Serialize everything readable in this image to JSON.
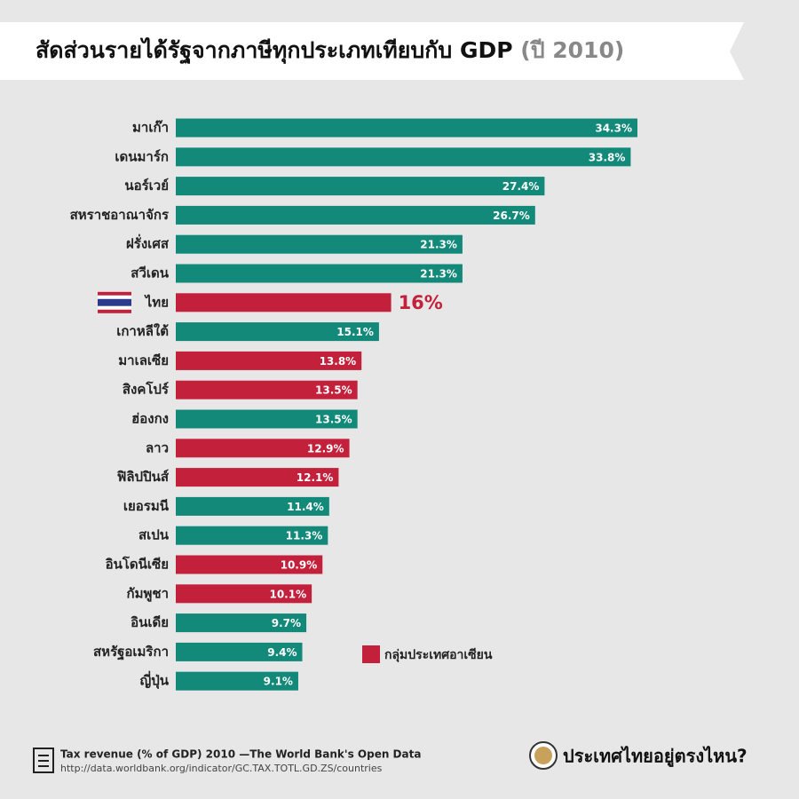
{
  "chart_data": {
    "type": "bar",
    "title": "สัดส่วนรายได้รัฐจากภาษีทุกประเภทเทียบกับ GDP",
    "subtitle": "(ปี 2010)",
    "categories": [
      "มาเก๊า",
      "เดนมาร์ก",
      "นอร์เวย์",
      "สหราชอาณาจักร",
      "ฝรั่งเศส",
      "สวีเดน",
      "ไทย",
      "เกาหลีใต้",
      "มาเลเซีย",
      "สิงคโปร์",
      "ฮ่องกง",
      "ลาว",
      "ฟิลิปปินส์",
      "เยอรมนี",
      "สเปน",
      "อินโดนีเซีย",
      "กัมพูชา",
      "อินเดีย",
      "สหรัฐอเมริกา",
      "ญี่ปุ่น"
    ],
    "values": [
      34.3,
      33.8,
      27.4,
      26.7,
      21.3,
      21.3,
      16,
      15.1,
      13.8,
      13.5,
      13.5,
      12.9,
      12.1,
      11.4,
      11.3,
      10.9,
      10.1,
      9.7,
      9.4,
      9.1
    ],
    "value_labels": [
      "34.3%",
      "33.8%",
      "27.4%",
      "26.7%",
      "21.3%",
      "21.3%",
      "16%",
      "15.1%",
      "13.8%",
      "13.5%",
      "13.5%",
      "12.9%",
      "12.1%",
      "11.4%",
      "11.3%",
      "10.9%",
      "10.1%",
      "9.7%",
      "9.4%",
      "9.1%"
    ],
    "colors": [
      "#13897a",
      "#13897a",
      "#13897a",
      "#13897a",
      "#13897a",
      "#13897a",
      "#c3213b",
      "#13897a",
      "#c3213b",
      "#c3213b",
      "#13897a",
      "#c3213b",
      "#c3213b",
      "#13897a",
      "#13897a",
      "#c3213b",
      "#c3213b",
      "#13897a",
      "#13897a",
      "#13897a"
    ],
    "highlight": 6,
    "legend": {
      "label": "กลุ่มประเทศอาเซียน",
      "color": "#c3213b"
    },
    "source": "Tax revenue (% of GDP) 2010 —The World Bank's Open Data",
    "source_url": "http://data.worldbank.org/indicator/GC.TAX.TOTL.GD.ZS/countries",
    "brand": "ประเทศไทยอยู่ตรงไหน?"
  }
}
